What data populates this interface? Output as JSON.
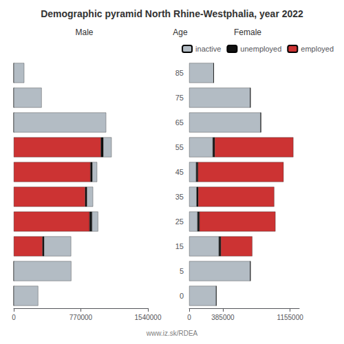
{
  "chart_data": [
    {
      "type": "bar",
      "orientation": "horizontal",
      "stacked": true,
      "title": "Demographic pyramid North Rhine-Westphalia, year 2022",
      "xlabel": "Male",
      "categories": [
        "0",
        "5",
        "15",
        "25",
        "35",
        "45",
        "55",
        "65",
        "75",
        "85"
      ],
      "series": [
        {
          "name": "employed",
          "color": "#cc3333",
          "values": [
            0,
            0,
            330000,
            870000,
            820000,
            880000,
            1000000,
            0,
            0,
            0
          ]
        },
        {
          "name": "unemployed",
          "color": "#111111",
          "values": [
            0,
            0,
            18000,
            28000,
            20000,
            22000,
            28000,
            0,
            0,
            0
          ]
        },
        {
          "name": "inactive",
          "color": "#b3bcc4",
          "values": [
            280000,
            660000,
            310000,
            70000,
            70000,
            55000,
            95000,
            1060000,
            320000,
            120000
          ]
        }
      ],
      "xlim": [
        0,
        1540000
      ],
      "xticks": [
        0,
        770000,
        1540000
      ],
      "grid": false,
      "tick_labels": "x"
    },
    {
      "type": "bar",
      "orientation": "horizontal",
      "stacked": true,
      "xlabel": "Female",
      "ylabel": "Age",
      "categories": [
        "0",
        "5",
        "15",
        "25",
        "35",
        "45",
        "55",
        "65",
        "75",
        "85"
      ],
      "series": [
        {
          "name": "inactive",
          "color": "#b3bcc4",
          "values": [
            310000,
            700000,
            340000,
            95000,
            85000,
            80000,
            270000,
            820000,
            700000,
            280000
          ]
        },
        {
          "name": "unemployed",
          "color": "#111111",
          "values": [
            0,
            0,
            22000,
            22000,
            18000,
            20000,
            22000,
            0,
            0,
            0
          ]
        },
        {
          "name": "employed",
          "color": "#cc3333",
          "values": [
            0,
            0,
            360000,
            870000,
            870000,
            980000,
            900000,
            0,
            0,
            0
          ]
        }
      ],
      "xlim": [
        0,
        1260000
      ],
      "xticks": [
        0,
        385000,
        1155000
      ],
      "grid": false,
      "legend": "upper right",
      "annotations": [
        "www.iz.sk/RDEA"
      ]
    }
  ]
}
